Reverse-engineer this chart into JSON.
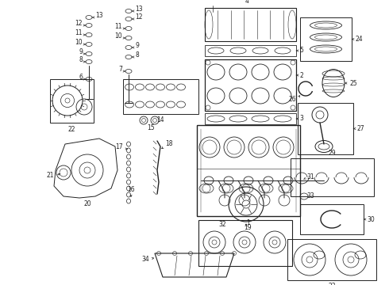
{
  "bg_color": "#ffffff",
  "line_color": "#222222",
  "figsize": [
    4.9,
    3.6
  ],
  "dpi": 100,
  "label_fs": 5.5,
  "label_color": "#111111"
}
